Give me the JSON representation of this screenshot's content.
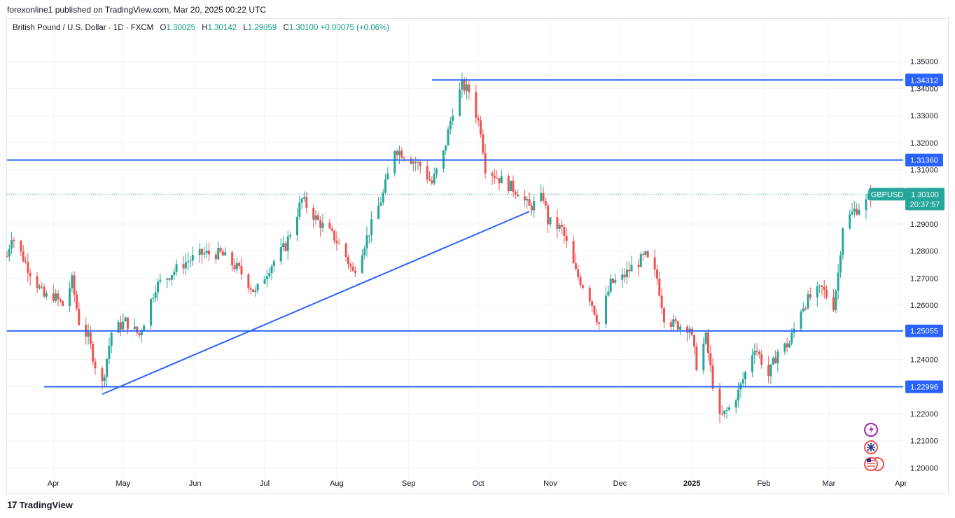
{
  "header": {
    "publisher_line": "forexonline1 published on TradingView.com, Mar 20, 2025 00:22 UTC"
  },
  "legend": {
    "instrument": "British Pound / U.S. Dollar · 1D · FXCM",
    "o_label": "O",
    "o_value": "1.30025",
    "h_label": "H",
    "h_value": "1.30142",
    "l_label": "L",
    "l_value": "1.29859",
    "c_label": "C",
    "c_value": "1.30100",
    "change": "+0.00075 (+0.06%)"
  },
  "footer": {
    "brand": "TradingView",
    "logo_mark": "17"
  },
  "colors": {
    "up": "#26a69a",
    "down": "#ef5350",
    "line": "#2962ff",
    "last_price": "#26a69a",
    "grid": "#f0f3fa"
  },
  "icons": [
    "lightning-event-icon",
    "uk-flag-event-icon",
    "us-uk-flags-event-icon"
  ],
  "chart_data": {
    "type": "candlestick",
    "symbol": "GBPUSD",
    "timeframe": "1D",
    "y_ticks": [
      "1.35000",
      "1.34000",
      "1.33000",
      "1.32000",
      "1.31000",
      "1.29000",
      "1.28000",
      "1.27000",
      "1.26000",
      "1.24000",
      "1.23000",
      "1.22000",
      "1.21000",
      "1.20000"
    ],
    "y_range": [
      1.1965,
      1.3592
    ],
    "x_ticks": [
      "Apr",
      "May",
      "Jun",
      "Jul",
      "Aug",
      "Sep",
      "Oct",
      "Nov",
      "Dec",
      "2025",
      "Feb",
      "Mar",
      "Apr"
    ],
    "x_range": [
      "2024-03-12",
      "2025-04-02"
    ],
    "horizontal_lines": [
      {
        "label": "1.34312",
        "price": 1.34312,
        "from": "2024-09-11"
      },
      {
        "label": "1.31360",
        "price": 1.3136,
        "from": "2024-03-12"
      },
      {
        "label": "1.25055",
        "price": 1.25055,
        "from": "2024-03-12"
      },
      {
        "label": "1.22996",
        "price": 1.22996,
        "from": "2024-03-28"
      }
    ],
    "trendline": {
      "from": {
        "date": "2024-04-22",
        "price": 1.2272
      },
      "to": {
        "date": "2024-10-23",
        "price": 1.2946
      }
    },
    "last_price": {
      "label": "GBPUSD",
      "value": "1.30100",
      "countdown": "20:37:57",
      "price": 1.301
    },
    "anchors": [
      [
        "2024-03-12",
        1.278
      ],
      [
        "2024-03-14",
        1.286
      ],
      [
        "2024-03-21",
        1.274
      ],
      [
        "2024-03-28",
        1.263
      ],
      [
        "2024-04-01",
        1.2635
      ],
      [
        "2024-04-05",
        1.26
      ],
      [
        "2024-04-09",
        1.269
      ],
      [
        "2024-04-12",
        1.254
      ],
      [
        "2024-04-16",
        1.248
      ],
      [
        "2024-04-19",
        1.238
      ],
      [
        "2024-04-22",
        1.231
      ],
      [
        "2024-04-26",
        1.25
      ],
      [
        "2024-05-02",
        1.254
      ],
      [
        "2024-05-08",
        1.249
      ],
      [
        "2024-05-15",
        1.267
      ],
      [
        "2024-05-22",
        1.272
      ],
      [
        "2024-05-28",
        1.276
      ],
      [
        "2024-06-04",
        1.279
      ],
      [
        "2024-06-12",
        1.279
      ],
      [
        "2024-06-20",
        1.273
      ],
      [
        "2024-06-27",
        1.2645
      ],
      [
        "2024-07-03",
        1.274
      ],
      [
        "2024-07-10",
        1.282
      ],
      [
        "2024-07-17",
        1.299
      ],
      [
        "2024-07-24",
        1.291
      ],
      [
        "2024-07-31",
        1.285
      ],
      [
        "2024-08-05",
        1.278
      ],
      [
        "2024-08-08",
        1.272
      ],
      [
        "2024-08-14",
        1.285
      ],
      [
        "2024-08-21",
        1.301
      ],
      [
        "2024-08-26",
        1.318
      ],
      [
        "2024-09-02",
        1.314
      ],
      [
        "2024-09-06",
        1.3115
      ],
      [
        "2024-09-11",
        1.305
      ],
      [
        "2024-09-16",
        1.316
      ],
      [
        "2024-09-20",
        1.332
      ],
      [
        "2024-09-24",
        1.341
      ],
      [
        "2024-09-27",
        1.339
      ],
      [
        "2024-10-02",
        1.325
      ],
      [
        "2024-10-04",
        1.311
      ],
      [
        "2024-10-11",
        1.306
      ],
      [
        "2024-10-18",
        1.302
      ],
      [
        "2024-10-23",
        1.296
      ],
      [
        "2024-10-29",
        1.3
      ],
      [
        "2024-10-31",
        1.291
      ],
      [
        "2024-11-06",
        1.288
      ],
      [
        "2024-11-12",
        1.272
      ],
      [
        "2024-11-18",
        1.263
      ],
      [
        "2024-11-22",
        1.253
      ],
      [
        "2024-11-27",
        1.268
      ],
      [
        "2024-12-02",
        1.27
      ],
      [
        "2024-12-06",
        1.274
      ],
      [
        "2024-12-12",
        1.278
      ],
      [
        "2024-12-17",
        1.27
      ],
      [
        "2024-12-20",
        1.256
      ],
      [
        "2024-12-24",
        1.253
      ],
      [
        "2024-12-31",
        1.252
      ],
      [
        "2025-01-03",
        1.238
      ],
      [
        "2025-01-07",
        1.248
      ],
      [
        "2025-01-10",
        1.231
      ],
      [
        "2025-01-13",
        1.218
      ],
      [
        "2025-01-17",
        1.222
      ],
      [
        "2025-01-21",
        1.228
      ],
      [
        "2025-01-24",
        1.235
      ],
      [
        "2025-01-28",
        1.245
      ],
      [
        "2025-02-03",
        1.234
      ],
      [
        "2025-02-07",
        1.243
      ],
      [
        "2025-02-12",
        1.246
      ],
      [
        "2025-02-17",
        1.259
      ],
      [
        "2025-02-21",
        1.263
      ],
      [
        "2025-02-26",
        1.266
      ],
      [
        "2025-03-03",
        1.26
      ],
      [
        "2025-03-05",
        1.272
      ],
      [
        "2025-03-07",
        1.2895
      ],
      [
        "2025-03-12",
        1.295
      ],
      [
        "2025-03-17",
        1.298
      ],
      [
        "2025-03-19",
        1.301
      ]
    ]
  }
}
